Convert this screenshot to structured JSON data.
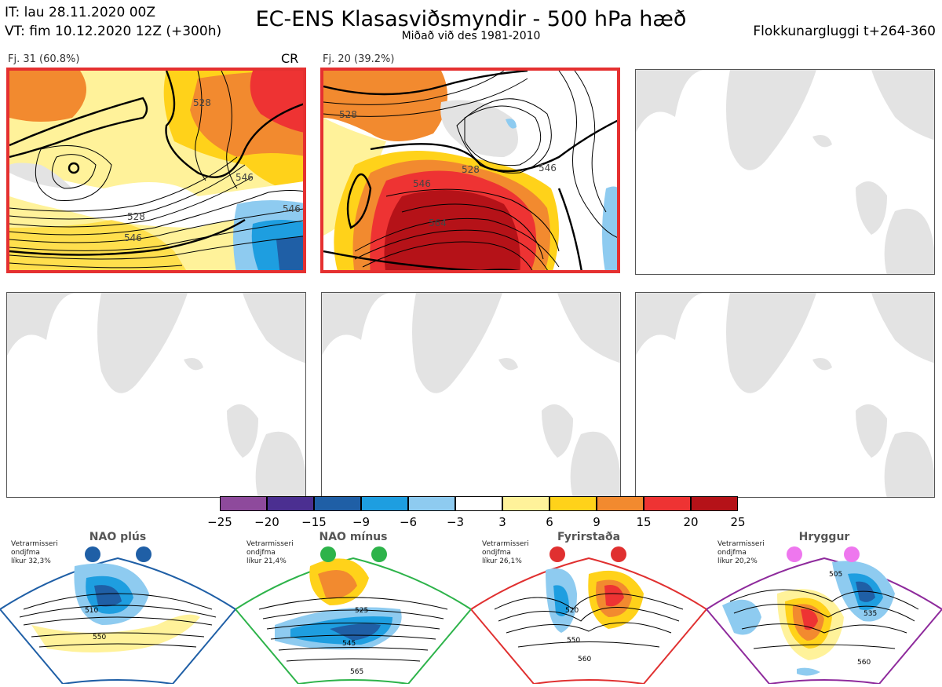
{
  "header": {
    "it_line": "IT: lau 28.11.2020 00Z",
    "vt_line": "VT: fim 10.12.2020 12Z  (+300h)",
    "title": "EC-ENS Klasasviðsmyndir - 500 hPa hæð",
    "subtitle": "Miðað við des 1981-2010",
    "window": "Flokkunargluggi t+264-360"
  },
  "panels": [
    {
      "label": "Fj. 31 (60.8%)",
      "tag": "CR",
      "selected": true,
      "contours": [
        "528",
        "546",
        "546",
        "528",
        "546"
      ]
    },
    {
      "label": "Fj. 20 (39.2%)",
      "tag": "",
      "selected": true,
      "contours": [
        "528",
        "528",
        "546",
        "564",
        "546"
      ]
    },
    {
      "label": "",
      "selected": false
    },
    {
      "label": "",
      "selected": false
    },
    {
      "label": "",
      "selected": false
    },
    {
      "label": "",
      "selected": false
    }
  ],
  "colorbar": {
    "ticks": [
      "−25",
      "−20",
      "−15",
      "−9",
      "−6",
      "−3",
      "3",
      "6",
      "9",
      "15",
      "20",
      "25"
    ],
    "colors": [
      "#8e4a9c",
      "#4b2f91",
      "#1f5fa6",
      "#1e9ee0",
      "#8ecbf0",
      "#ffffff",
      "#fff29a",
      "#ffd21a",
      "#f28a2f",
      "#ee3333",
      "#b51218"
    ]
  },
  "regimes": [
    {
      "name": "NAO plús",
      "note": [
        "Vetrarmisseri",
        "ondjfma",
        "líkur 32,3%"
      ],
      "color": "#1f5fa6",
      "contours": [
        "510",
        "550"
      ]
    },
    {
      "name": "NAO mínus",
      "note": [
        "Vetrarmisseri",
        "ondjfma",
        "líkur 21,4%"
      ],
      "color": "#2db34a",
      "contours": [
        "525",
        "545",
        "565"
      ]
    },
    {
      "name": "Fyrirstaða",
      "note": [
        "Vetrarmisseri",
        "ondjfma",
        "líkur 26,1%"
      ],
      "color": "#e03030",
      "contours": [
        "520",
        "550",
        "560"
      ]
    },
    {
      "name": "Hryggur",
      "note": [
        "Vetrarmisseri",
        "ondjfma",
        "líkur 20,2%"
      ],
      "color": "#8e2a9c",
      "dot_color": "#ee77ee",
      "contours": [
        "505",
        "535",
        "560"
      ]
    }
  ]
}
